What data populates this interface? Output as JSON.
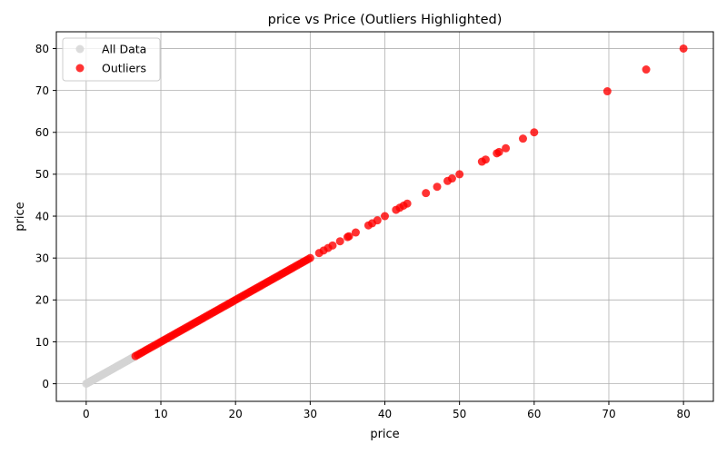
{
  "chart_data": {
    "type": "scatter",
    "title": "price vs Price (Outliers Highlighted)",
    "xlabel": "price",
    "ylabel": "price",
    "xlim": [
      -4,
      84
    ],
    "ylim": [
      -4.2,
      84
    ],
    "x_ticks": [
      0,
      10,
      20,
      30,
      40,
      50,
      60,
      70,
      80
    ],
    "y_ticks": [
      0,
      10,
      20,
      30,
      40,
      50,
      60,
      70,
      80
    ],
    "grid": true,
    "legend_position": "top-left",
    "series": [
      {
        "name": "All Data",
        "color": "#d3d3d3",
        "range": [
          0,
          6.6
        ],
        "step": 0.15
      },
      {
        "name": "Outliers",
        "color": "#ff0000",
        "range": [
          6.6,
          30
        ],
        "step": 0.3,
        "points": [
          31.2,
          31.8,
          32.4,
          33,
          34,
          35,
          35.2,
          36.1,
          37.8,
          38.3,
          39,
          40,
          41.5,
          42,
          42.5,
          43,
          45.5,
          47,
          48.4,
          49,
          50,
          53,
          53.5,
          55,
          55.3,
          56.2,
          58.5,
          60,
          69.8,
          75,
          80
        ]
      }
    ]
  }
}
